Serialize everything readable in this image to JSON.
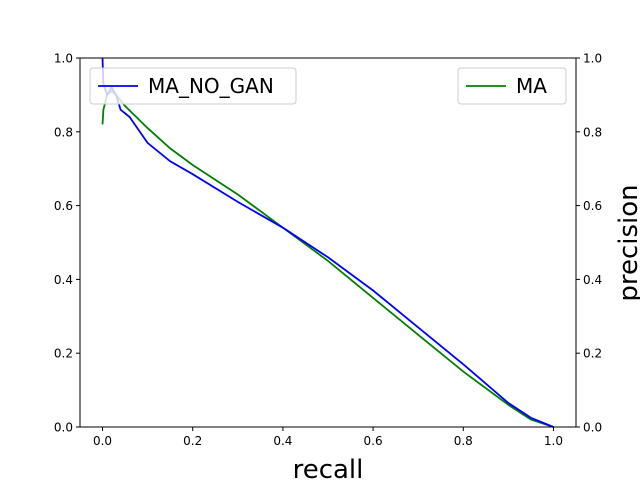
{
  "chart_data": {
    "type": "line",
    "title": "",
    "xlabel": "recall",
    "ylabel": "precision",
    "xlim": [
      -0.05,
      1.05
    ],
    "ylim": [
      0,
      1
    ],
    "xticks": [
      0.0,
      0.2,
      0.4,
      0.6,
      0.8,
      1.0
    ],
    "xtick_labels": [
      "0.0",
      "0.2",
      "0.4",
      "0.6",
      "0.8",
      "1.0"
    ],
    "yticks": [
      0.0,
      0.2,
      0.4,
      0.6,
      0.8,
      1.0
    ],
    "ytick_labels": [
      "0.0",
      "0.2",
      "0.4",
      "0.6",
      "0.8",
      "1.0"
    ],
    "grid": false,
    "series": [
      {
        "name": "MA_NO_GAN",
        "color": "#0000ff",
        "legend": "top-left",
        "x": [
          0,
          0.002,
          0.01,
          0.02,
          0.03,
          0.04,
          0.06,
          0.1,
          0.15,
          0.2,
          0.3,
          0.4,
          0.5,
          0.6,
          0.7,
          0.8,
          0.9,
          0.95,
          1.0
        ],
        "y": [
          1.0,
          0.93,
          0.9,
          0.92,
          0.9,
          0.86,
          0.84,
          0.77,
          0.72,
          0.685,
          0.61,
          0.54,
          0.46,
          0.37,
          0.27,
          0.17,
          0.065,
          0.025,
          0.0
        ]
      },
      {
        "name": "MA",
        "color": "#008000",
        "legend": "top-right",
        "x": [
          0,
          0.002,
          0.006,
          0.01,
          0.02,
          0.03,
          0.05,
          0.1,
          0.15,
          0.2,
          0.3,
          0.4,
          0.5,
          0.6,
          0.7,
          0.8,
          0.9,
          0.95,
          1.0
        ],
        "y": [
          0.82,
          0.86,
          0.88,
          0.9,
          0.91,
          0.9,
          0.87,
          0.81,
          0.755,
          0.71,
          0.63,
          0.54,
          0.45,
          0.35,
          0.25,
          0.15,
          0.06,
          0.02,
          0.0
        ]
      }
    ]
  }
}
